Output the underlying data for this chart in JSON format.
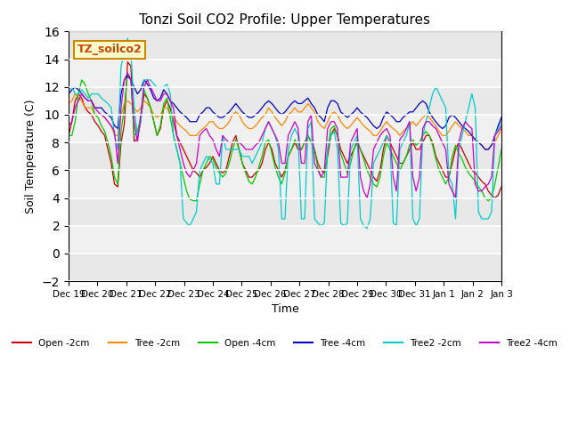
{
  "title": "Tonzi Soil CO2 Profile: Upper Temperatures",
  "xlabel": "Time",
  "ylabel": "Soil Temperature (C)",
  "ylim": [
    -2,
    16
  ],
  "yticks": [
    -2,
    0,
    2,
    4,
    6,
    8,
    10,
    12,
    14,
    16
  ],
  "watermark": "TZ_soilco2",
  "legend_labels": [
    "Open -2cm",
    "Tree -2cm",
    "Open -4cm",
    "Tree -4cm",
    "Tree2 -2cm",
    "Tree2 -4cm"
  ],
  "legend_colors": [
    "#cc0000",
    "#ff8800",
    "#00cc00",
    "#0000cc",
    "#00cccc",
    "#cc00cc"
  ],
  "xtick_labels": [
    "Dec 19",
    "Dec 20",
    "Dec 21",
    "Dec 22",
    "Dec 23",
    "Dec 24",
    "Dec 25",
    "Dec 26",
    "Dec 27",
    "Dec 28",
    "Dec 29",
    "Dec 30",
    "Dec 31",
    "Jan 1",
    "Jan 2",
    "Jan 3"
  ],
  "series": {
    "open2": [
      8.5,
      9.5,
      11.0,
      11.5,
      11.2,
      10.5,
      10.2,
      10.0,
      9.5,
      9.2,
      8.8,
      8.5,
      7.5,
      6.5,
      5.0,
      4.8,
      8.0,
      9.3,
      13.8,
      13.5,
      8.0,
      8.3,
      9.5,
      11.5,
      11.2,
      10.5,
      9.5,
      8.5,
      9.0,
      10.5,
      11.0,
      10.5,
      9.5,
      8.5,
      8.0,
      7.5,
      7.0,
      6.5,
      6.0,
      5.8,
      5.5,
      6.0,
      6.2,
      6.5,
      7.0,
      6.5,
      6.0,
      5.8,
      6.0,
      7.0,
      8.0,
      8.5,
      7.5,
      6.5,
      6.0,
      5.5,
      5.5,
      5.8,
      6.0,
      6.5,
      7.5,
      8.0,
      7.5,
      6.5,
      6.0,
      5.5,
      6.0,
      7.0,
      7.5,
      8.0,
      7.5,
      7.5,
      8.0,
      8.5,
      8.0,
      7.5,
      6.5,
      6.0,
      5.8,
      7.0,
      8.5,
      9.0,
      8.5,
      7.5,
      7.0,
      6.5,
      7.0,
      7.5,
      8.0,
      7.5,
      7.0,
      6.5,
      6.0,
      5.5,
      5.2,
      6.0,
      7.5,
      8.5,
      8.0,
      7.5,
      7.0,
      6.5,
      6.5,
      7.0,
      7.5,
      8.0,
      7.5,
      7.5,
      8.0,
      8.5,
      8.5,
      8.0,
      7.0,
      6.5,
      6.0,
      5.5,
      5.5,
      6.5,
      7.5,
      8.0,
      7.5,
      7.0,
      6.5,
      6.0,
      5.8,
      5.5,
      5.2,
      5.0,
      4.5,
      4.2,
      4.0,
      4.2,
      4.8
    ],
    "tree2": [
      10.8,
      11.0,
      11.5,
      11.2,
      11.0,
      10.5,
      10.5,
      10.5,
      10.0,
      10.0,
      10.0,
      9.8,
      9.5,
      9.2,
      8.5,
      8.5,
      10.0,
      10.8,
      11.0,
      10.8,
      10.5,
      10.2,
      10.5,
      11.0,
      10.8,
      10.5,
      10.0,
      9.8,
      10.0,
      10.5,
      10.5,
      10.0,
      9.8,
      9.5,
      9.2,
      9.0,
      8.8,
      8.5,
      8.5,
      8.5,
      8.8,
      9.0,
      9.2,
      9.5,
      9.5,
      9.2,
      9.0,
      9.0,
      9.2,
      9.5,
      10.0,
      10.2,
      10.0,
      9.5,
      9.2,
      9.0,
      9.0,
      9.2,
      9.5,
      9.8,
      10.0,
      10.5,
      10.2,
      9.8,
      9.5,
      9.2,
      9.5,
      10.0,
      10.2,
      10.5,
      10.2,
      10.2,
      10.5,
      10.8,
      10.5,
      10.2,
      9.5,
      9.2,
      9.0,
      9.5,
      10.0,
      10.2,
      10.0,
      9.5,
      9.2,
      9.0,
      9.2,
      9.5,
      9.8,
      9.5,
      9.2,
      9.0,
      8.8,
      8.5,
      8.5,
      8.8,
      9.2,
      9.5,
      9.2,
      9.0,
      8.8,
      8.5,
      8.8,
      9.0,
      9.2,
      9.5,
      9.2,
      9.5,
      9.8,
      10.0,
      9.8,
      9.5,
      9.2,
      8.8,
      8.5,
      8.5,
      8.8,
      9.2,
      9.5,
      9.2,
      9.0,
      8.8,
      8.5,
      8.5,
      8.2,
      8.0,
      7.8,
      7.5,
      7.5,
      7.8,
      8.0,
      8.5,
      9.0
    ],
    "open4": [
      8.5,
      8.5,
      9.5,
      11.5,
      12.5,
      12.2,
      11.5,
      11.0,
      10.0,
      9.8,
      9.2,
      8.8,
      8.0,
      7.0,
      5.5,
      5.0,
      8.8,
      10.5,
      13.0,
      12.5,
      8.5,
      8.8,
      9.8,
      11.8,
      11.2,
      10.5,
      9.5,
      8.5,
      9.2,
      10.8,
      11.2,
      9.8,
      8.5,
      7.5,
      6.5,
      5.5,
      4.5,
      3.9,
      3.8,
      3.8,
      5.0,
      6.0,
      6.5,
      7.0,
      6.8,
      6.2,
      5.8,
      5.5,
      5.8,
      6.5,
      7.5,
      8.2,
      7.5,
      6.5,
      5.8,
      5.2,
      5.0,
      5.5,
      6.2,
      7.0,
      8.0,
      8.2,
      7.2,
      6.2,
      5.5,
      5.0,
      5.8,
      7.0,
      7.5,
      8.2,
      7.8,
      7.5,
      8.0,
      8.5,
      8.0,
      7.5,
      6.2,
      5.5,
      5.5,
      7.5,
      9.0,
      9.2,
      8.5,
      7.2,
      6.5,
      5.8,
      6.5,
      7.5,
      8.2,
      7.5,
      6.8,
      6.0,
      5.5,
      5.0,
      4.8,
      5.5,
      7.0,
      8.0,
      7.5,
      7.0,
      6.5,
      6.0,
      6.5,
      7.0,
      7.8,
      8.2,
      7.8,
      8.0,
      8.5,
      8.8,
      8.5,
      7.8,
      6.8,
      6.0,
      5.5,
      5.0,
      5.5,
      7.0,
      7.8,
      7.2,
      6.8,
      6.2,
      5.8,
      5.5,
      5.2,
      4.8,
      4.5,
      4.0,
      3.8,
      4.0,
      5.0,
      6.2,
      7.5
    ],
    "tree4": [
      11.5,
      11.8,
      12.0,
      11.8,
      11.5,
      11.2,
      11.0,
      11.0,
      10.5,
      10.5,
      10.5,
      10.2,
      10.0,
      9.8,
      9.2,
      9.0,
      11.5,
      12.5,
      12.8,
      12.5,
      12.0,
      11.5,
      11.8,
      12.5,
      12.2,
      11.8,
      11.2,
      11.0,
      11.2,
      11.8,
      11.5,
      11.0,
      10.8,
      10.5,
      10.2,
      10.0,
      9.8,
      9.5,
      9.5,
      9.5,
      10.0,
      10.2,
      10.5,
      10.5,
      10.2,
      10.0,
      9.8,
      9.8,
      10.0,
      10.2,
      10.5,
      10.8,
      10.5,
      10.2,
      10.0,
      9.8,
      9.8,
      10.0,
      10.2,
      10.5,
      10.8,
      11.0,
      10.8,
      10.5,
      10.2,
      10.0,
      10.2,
      10.5,
      10.8,
      11.0,
      10.8,
      10.8,
      11.0,
      11.2,
      10.8,
      10.5,
      10.0,
      9.8,
      9.5,
      10.5,
      11.0,
      11.0,
      10.8,
      10.2,
      10.0,
      9.8,
      10.0,
      10.2,
      10.5,
      10.2,
      10.0,
      9.8,
      9.5,
      9.2,
      9.0,
      9.2,
      9.8,
      10.2,
      10.0,
      9.8,
      9.5,
      9.5,
      9.8,
      10.0,
      10.2,
      10.2,
      10.5,
      10.8,
      11.0,
      10.8,
      10.2,
      9.8,
      9.5,
      9.2,
      9.0,
      9.2,
      9.8,
      10.0,
      9.8,
      9.5,
      9.2,
      9.0,
      8.8,
      8.5,
      8.2,
      8.0,
      7.8,
      7.5,
      7.5,
      7.8,
      8.5,
      9.2,
      9.8
    ],
    "tree2_2cm": [
      11.8,
      12.0,
      11.5,
      11.5,
      11.8,
      11.5,
      11.2,
      11.5,
      11.5,
      11.5,
      11.2,
      11.0,
      10.8,
      10.5,
      8.5,
      7.5,
      13.5,
      14.5,
      15.5,
      14.5,
      10.5,
      8.5,
      9.5,
      12.5,
      12.5,
      12.5,
      12.2,
      12.0,
      12.0,
      12.0,
      12.2,
      11.5,
      8.5,
      7.5,
      6.5,
      2.5,
      2.2,
      2.0,
      2.5,
      3.0,
      6.0,
      6.5,
      7.0,
      6.8,
      6.5,
      5.0,
      5.0,
      8.5,
      7.5,
      7.5,
      7.5,
      7.5,
      7.5,
      7.0,
      7.0,
      7.0,
      6.5,
      7.0,
      7.5,
      8.0,
      9.0,
      9.5,
      9.0,
      8.5,
      7.5,
      2.5,
      2.5,
      7.5,
      8.5,
      9.0,
      8.5,
      2.5,
      2.5,
      9.0,
      9.5,
      2.5,
      2.2,
      2.0,
      2.2,
      7.5,
      8.5,
      8.8,
      7.5,
      2.2,
      2.0,
      2.2,
      7.5,
      8.0,
      8.5,
      2.5,
      2.0,
      1.8,
      2.5,
      6.5,
      7.0,
      7.5,
      8.0,
      8.5,
      8.0,
      2.2,
      2.0,
      7.5,
      8.0,
      8.5,
      9.5,
      2.5,
      2.0,
      2.5,
      8.5,
      9.5,
      10.5,
      11.5,
      12.0,
      11.5,
      11.0,
      10.5,
      5.5,
      5.0,
      2.5,
      7.5,
      8.5,
      9.5,
      10.5,
      11.5,
      10.5,
      3.0,
      2.5,
      2.5,
      2.5,
      3.0,
      8.5,
      9.0,
      9.5
    ],
    "tree2_4cm": [
      9.2,
      9.5,
      10.5,
      11.0,
      11.5,
      11.2,
      11.0,
      11.0,
      10.5,
      10.2,
      10.0,
      9.8,
      9.5,
      9.2,
      8.8,
      6.5,
      10.5,
      12.5,
      13.0,
      12.5,
      9.5,
      8.0,
      10.0,
      12.0,
      12.5,
      12.0,
      11.5,
      11.0,
      11.0,
      11.5,
      11.5,
      11.0,
      10.5,
      8.5,
      7.5,
      6.5,
      5.8,
      5.5,
      6.0,
      6.5,
      8.5,
      8.8,
      9.0,
      8.5,
      8.2,
      7.5,
      7.0,
      8.5,
      8.2,
      8.0,
      8.0,
      8.0,
      8.0,
      7.8,
      7.5,
      7.5,
      7.5,
      7.8,
      8.0,
      8.5,
      9.0,
      9.5,
      9.0,
      8.5,
      8.0,
      6.5,
      6.5,
      8.5,
      9.0,
      9.5,
      9.0,
      6.5,
      6.5,
      9.5,
      10.0,
      6.5,
      6.0,
      5.5,
      6.0,
      9.0,
      9.5,
      9.5,
      9.0,
      5.5,
      5.5,
      5.5,
      8.0,
      8.5,
      9.0,
      5.5,
      4.5,
      4.0,
      5.0,
      7.5,
      8.0,
      8.5,
      8.8,
      9.0,
      8.5,
      5.5,
      4.5,
      8.2,
      8.5,
      9.0,
      9.5,
      5.5,
      4.5,
      5.5,
      9.0,
      9.5,
      9.5,
      9.2,
      9.0,
      8.5,
      8.0,
      7.5,
      5.0,
      4.5,
      4.0,
      8.0,
      9.0,
      9.5,
      9.2,
      9.0,
      5.0,
      4.5,
      4.5,
      4.8,
      5.0,
      5.5,
      8.5,
      8.8,
      9.2
    ]
  }
}
